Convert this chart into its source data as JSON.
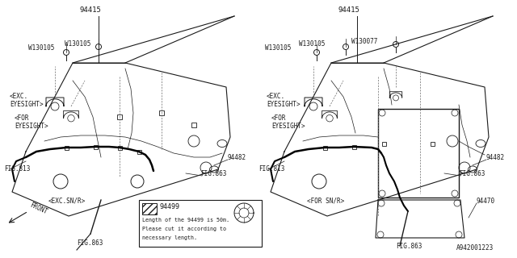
{
  "bg_color": "#ffffff",
  "line_color": "#1a1a1a",
  "dark_line": "#000000",
  "dash_color": "#666666",
  "fig_size": [
    6.4,
    3.2
  ],
  "dpi": 100,
  "part_id_text": "A942001223",
  "legend_text1": "Length of the 94499 is 50m.",
  "legend_text2": "Please cut it according to",
  "legend_text3": "necessary length."
}
